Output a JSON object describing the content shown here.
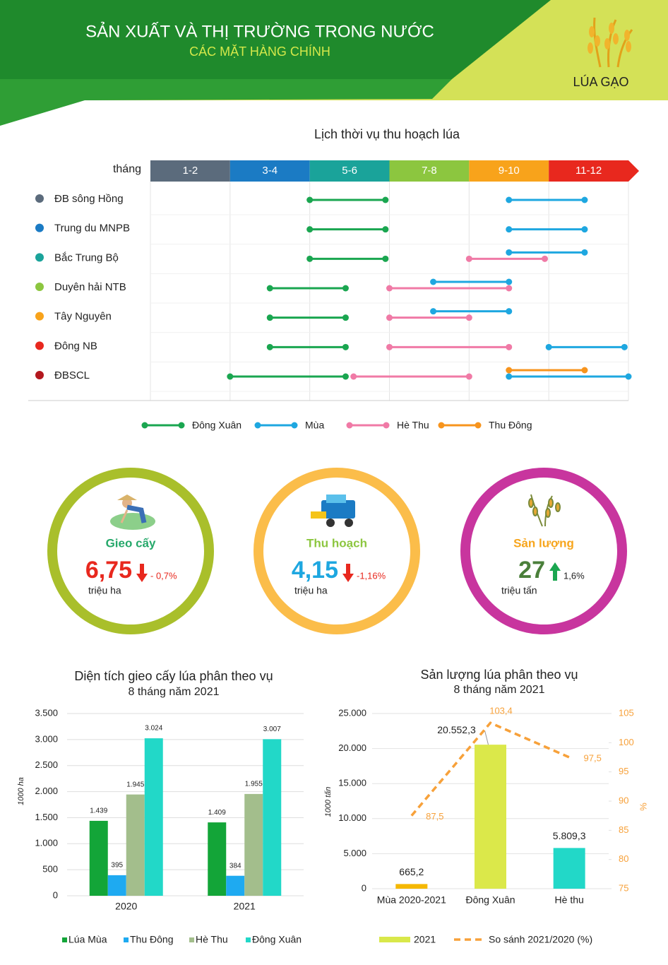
{
  "header": {
    "title": "SẢN XUẤT VÀ THỊ TRƯỜNG TRONG NƯỚC",
    "subtitle": "CÁC MẶT HÀNG CHÍNH",
    "brand": "LÚA GẠO"
  },
  "calendar": {
    "title": "Lịch thời vụ thu hoạch lúa",
    "axis_label": "tháng",
    "xlim": [
      0,
      12
    ],
    "periods": [
      {
        "label": "1-2",
        "color": "#5b6b7c"
      },
      {
        "label": "3-4",
        "color": "#1b7bc4"
      },
      {
        "label": "5-6",
        "color": "#1aa39a"
      },
      {
        "label": "7-8",
        "color": "#8cc63f"
      },
      {
        "label": "9-10",
        "color": "#f8a31b"
      },
      {
        "label": "11-12",
        "color": "#e8281e"
      }
    ],
    "seasons": [
      {
        "name": "Đông Xuân",
        "color": "#1aa650"
      },
      {
        "name": "Mùa",
        "color": "#1ea7e0"
      },
      {
        "name": "Hè Thu",
        "color": "#f07aa6"
      },
      {
        "name": "Thu Đông",
        "color": "#f7941d"
      }
    ],
    "rows": [
      {
        "name": "ĐB sông Hồng",
        "color": "#5b6b7c",
        "segments": [
          {
            "season": 0,
            "start": 4,
            "end": 5.9
          },
          {
            "season": 1,
            "start": 9,
            "end": 10.9
          }
        ]
      },
      {
        "name": "Trung du MNPB",
        "color": "#1b7bc4",
        "segments": [
          {
            "season": 0,
            "start": 4,
            "end": 5.9
          },
          {
            "season": 1,
            "start": 9,
            "end": 10.9
          }
        ]
      },
      {
        "name": "Bắc Trung Bộ",
        "color": "#1aa39a",
        "segments": [
          {
            "season": 0,
            "start": 4,
            "end": 5.9
          },
          {
            "season": 2,
            "start": 8,
            "end": 9.9
          },
          {
            "season": 1,
            "start": 9,
            "end": 10.9
          }
        ]
      },
      {
        "name": "Duyên hải NTB",
        "color": "#8cc63f",
        "segments": [
          {
            "season": 0,
            "start": 3,
            "end": 4.9
          },
          {
            "season": 2,
            "start": 6,
            "end": 9
          },
          {
            "season": 1,
            "start": 7.1,
            "end": 9
          }
        ]
      },
      {
        "name": "Tây Nguyên",
        "color": "#f8a31b",
        "segments": [
          {
            "season": 0,
            "start": 3,
            "end": 4.9
          },
          {
            "season": 2,
            "start": 6,
            "end": 8
          },
          {
            "season": 1,
            "start": 7.1,
            "end": 9
          }
        ]
      },
      {
        "name": "Đông NB",
        "color": "#e8281e",
        "segments": [
          {
            "season": 0,
            "start": 3,
            "end": 4.9
          },
          {
            "season": 2,
            "start": 6,
            "end": 9
          },
          {
            "season": 1,
            "start": 10,
            "end": 11.9
          }
        ]
      },
      {
        "name": "ĐBSCL",
        "color": "#b3181e",
        "segments": [
          {
            "season": 0,
            "start": 2,
            "end": 4.9
          },
          {
            "season": 2,
            "start": 5.1,
            "end": 8
          },
          {
            "season": 1,
            "start": 9,
            "end": 12
          },
          {
            "season": 3,
            "start": 9,
            "end": 10.9
          }
        ]
      }
    ]
  },
  "kpis": [
    {
      "title": "Gieo cấy",
      "value": "6,75",
      "unit": "triệu ha",
      "change": "- 0,7%",
      "direction": "down",
      "ring_color": "#a9bf2b",
      "title_color": "#25a86a",
      "value_color": "#e8281e",
      "arrow_color": "#e8281e"
    },
    {
      "title": "Thu hoạch",
      "value": "4,15",
      "unit": "triệu ha",
      "change": "-1,16%",
      "direction": "down",
      "ring_color": "#fbbd4a",
      "title_color": "#8cc63f",
      "value_color": "#1ea7e0",
      "arrow_color": "#e8281e"
    },
    {
      "title": "Sản lượng",
      "value": "27",
      "unit": "triệu tấn",
      "change": "1,6%",
      "direction": "up",
      "ring_color": "#c8359e",
      "title_color": "#f7a51c",
      "value_color": "#4a7f3a",
      "arrow_color": "#1aa650"
    }
  ],
  "chart_data": [
    {
      "type": "bar",
      "title": "Diện tích gieo cấy lúa phân theo vụ",
      "subtitle": "8 tháng năm 2021",
      "y_label": "1000 ha",
      "categories": [
        "2020",
        "2021"
      ],
      "series": [
        {
          "name": "Lúa Mùa",
          "color": "#13a538",
          "values": [
            1439,
            1409
          ],
          "value_labels": [
            "1.439",
            "1.409"
          ]
        },
        {
          "name": "Thu Đông",
          "color": "#1eaaf1",
          "values": [
            395,
            384
          ]
        },
        {
          "name": "Hè Thu",
          "color": "#a3be8c",
          "values": [
            1945,
            1955
          ],
          "value_labels": [
            "1.945",
            "1.955"
          ]
        },
        {
          "name": "Đông Xuân",
          "color": "#22d8c8",
          "values": [
            3024,
            3007
          ],
          "value_labels": [
            "3.024",
            "3.007"
          ]
        }
      ],
      "ylim": [
        0,
        3500
      ],
      "yticks": [
        0,
        500,
        {
          "value": 1000,
          "label": "1.000"
        },
        {
          "value": 1500,
          "label": "1.500"
        },
        {
          "value": 2000,
          "label": "2.000"
        },
        {
          "value": 2500,
          "label": "2.500"
        },
        {
          "value": 3000,
          "label": "3.000"
        },
        {
          "value": 3500,
          "label": "3.500"
        }
      ],
      "grid": true,
      "legend": "bottom"
    },
    {
      "type": "bar_line",
      "title": "Sản lượng lúa phân theo vụ",
      "subtitle": "8 tháng năm 2021",
      "y_label": "1000 tấn",
      "y2_label": "%",
      "categories": [
        "Mùa 2020-2021",
        "Đông Xuân",
        "Hè thu"
      ],
      "series": [
        {
          "name": "2021",
          "color": "#d9e84a",
          "colors": [
            "#f5b800",
            "#dbe84a",
            "#22d8c8"
          ],
          "values": [
            665.2,
            20552.3,
            5809.3
          ],
          "value_labels": [
            "665,2",
            "20.552,3",
            "5.809,3"
          ]
        },
        {
          "name": "So sánh 2021/2020 (%)",
          "color": "#f7a13a",
          "axis": "y2",
          "dash": true,
          "values": [
            87.5,
            103.4,
            97.5
          ],
          "value_labels": [
            "87,5",
            "103,4",
            "97,5"
          ]
        }
      ],
      "ylim": [
        0,
        25000
      ],
      "yticks": [
        0,
        {
          "value": 5000,
          "label": "5.000"
        },
        {
          "value": 10000,
          "label": "10.000"
        },
        {
          "value": 15000,
          "label": "15.000"
        },
        {
          "value": 20000,
          "label": "20.000"
        },
        {
          "value": 25000,
          "label": "25.000"
        }
      ],
      "y2lim": [
        75,
        105
      ],
      "y2ticks": [
        75,
        80,
        85,
        90,
        95,
        100,
        105
      ],
      "grid": true,
      "legend": "bottom"
    }
  ]
}
